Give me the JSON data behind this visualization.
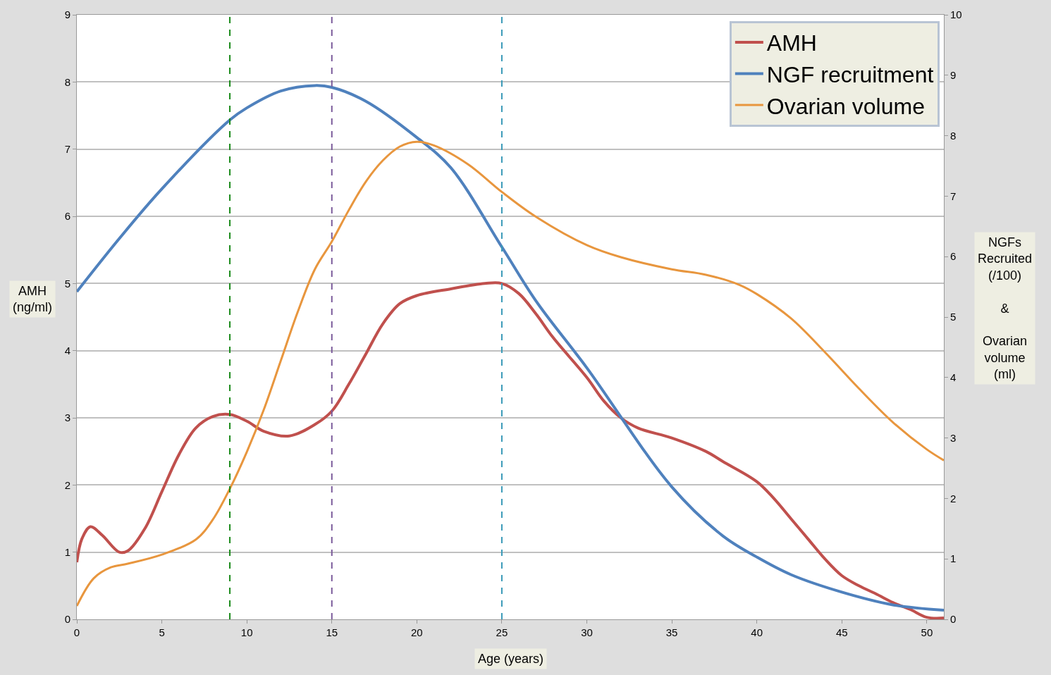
{
  "chart_data": {
    "type": "line",
    "xlabel": "Age (years)",
    "ylabel": "AMH\n(ng/ml)",
    "y2label": "NGFs\nRecruited\n(/100)\n\n&\n\nOvarian\nvolume\n(ml)",
    "xlim": [
      0,
      51
    ],
    "xticks": [
      0,
      5,
      10,
      15,
      20,
      25,
      30,
      35,
      40,
      45,
      50
    ],
    "ylim": [
      0,
      9
    ],
    "yticks": [
      0,
      1,
      2,
      3,
      4,
      5,
      6,
      7,
      8,
      9
    ],
    "y2lim": [
      0,
      10
    ],
    "y2ticks": [
      0,
      1,
      2,
      3,
      4,
      5,
      6,
      7,
      8,
      9,
      10
    ],
    "grid": "y",
    "legend": "top right",
    "line_style": "solid",
    "marker": "none",
    "ref_lines": [
      {
        "axis": "x",
        "value": 9,
        "color": "#1a8a1a",
        "line_style": "dashed"
      },
      {
        "axis": "x",
        "value": 15,
        "color": "#7a5a9a",
        "line_style": "dashed"
      },
      {
        "axis": "x",
        "value": 25,
        "color": "#3a9ab8",
        "line_style": "dashed"
      }
    ],
    "series": [
      {
        "name": "AMH",
        "color": "#c0504d",
        "x": [
          0,
          0.3,
          0.8,
          1.5,
          2.5,
          3,
          4,
          5,
          6,
          7,
          8,
          9,
          10,
          11,
          12.5,
          14,
          15,
          16,
          17,
          18,
          19,
          20,
          22,
          24,
          25,
          26,
          27,
          28,
          30,
          31,
          32,
          33,
          35,
          37,
          38,
          40,
          41,
          42,
          43,
          44,
          45,
          46,
          47,
          48,
          49,
          50,
          51
        ],
        "values": [
          0.85,
          1.2,
          1.38,
          1.25,
          1.0,
          1.02,
          1.35,
          1.9,
          2.45,
          2.85,
          3.02,
          3.05,
          2.95,
          2.8,
          2.73,
          2.9,
          3.1,
          3.5,
          3.95,
          4.4,
          4.7,
          4.82,
          4.92,
          5.0,
          5.0,
          4.85,
          4.55,
          4.2,
          3.6,
          3.25,
          3.0,
          2.85,
          2.7,
          2.5,
          2.35,
          2.05,
          1.8,
          1.5,
          1.2,
          0.9,
          0.65,
          0.5,
          0.38,
          0.25,
          0.15,
          0.03,
          0.02
        ]
      },
      {
        "name": "NGF recruitment",
        "color": "#4f81bd",
        "axis": "y2",
        "x": [
          0,
          2.5,
          5,
          9,
          10,
          12,
          14,
          15,
          17,
          20,
          22,
          25,
          27,
          30,
          35,
          38,
          40,
          42,
          45,
          48,
          51
        ],
        "values": [
          5.42,
          6.3,
          7.12,
          8.26,
          8.46,
          8.74,
          8.83,
          8.8,
          8.57,
          7.97,
          7.47,
          6.16,
          5.27,
          4.16,
          2.19,
          1.38,
          1.03,
          0.74,
          0.45,
          0.24,
          0.15
        ]
      },
      {
        "name": "Ovarian volume",
        "color": "#e8963e",
        "axis": "y2",
        "x": [
          0,
          1,
          2,
          3,
          5,
          7,
          8,
          9,
          10,
          11,
          12,
          13,
          14,
          15,
          16,
          17,
          18,
          19,
          20,
          21,
          23,
          25,
          27,
          30,
          32,
          35,
          37,
          39,
          40,
          42,
          44,
          46,
          48,
          50,
          51
        ],
        "values": [
          0.22,
          0.68,
          0.86,
          0.92,
          1.07,
          1.32,
          1.65,
          2.16,
          2.77,
          3.47,
          4.28,
          5.09,
          5.79,
          6.25,
          6.77,
          7.24,
          7.59,
          7.82,
          7.9,
          7.84,
          7.53,
          7.07,
          6.66,
          6.19,
          5.99,
          5.79,
          5.7,
          5.53,
          5.38,
          4.98,
          4.42,
          3.82,
          3.26,
          2.81,
          2.63
        ]
      }
    ]
  }
}
